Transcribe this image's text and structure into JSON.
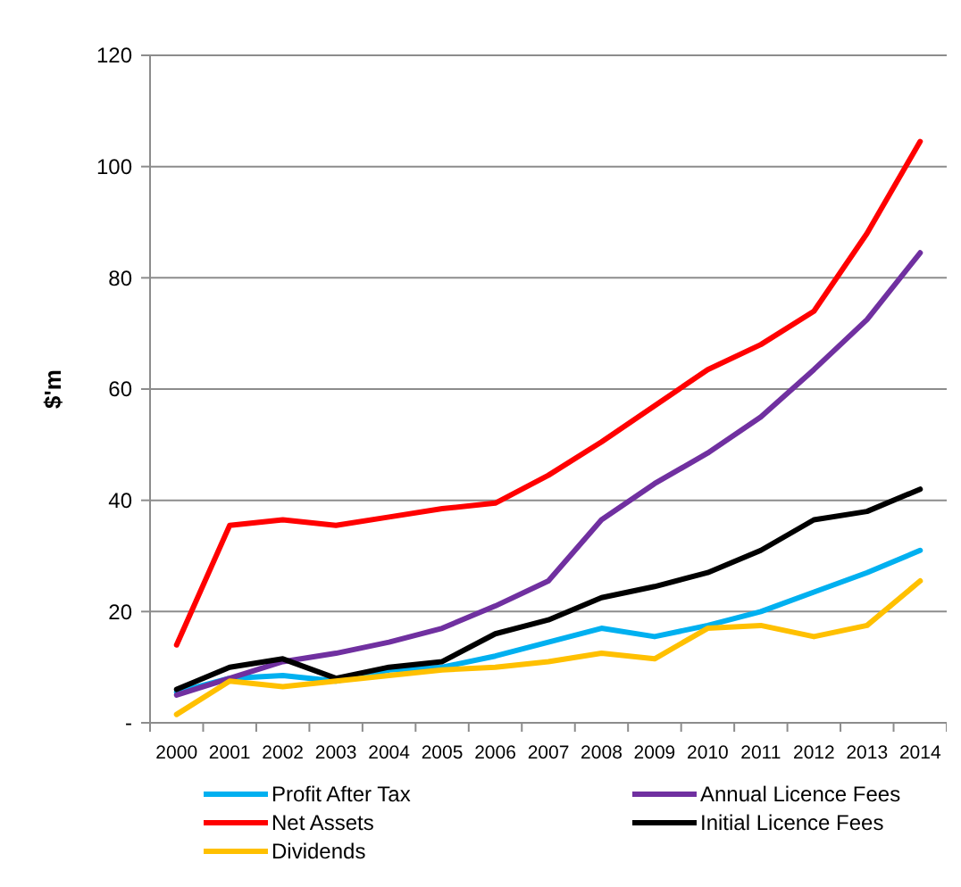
{
  "chart_data": {
    "type": "line",
    "ylabel": "$'m",
    "categories": [
      "2000",
      "2001",
      "2002",
      "2003",
      "2004",
      "2005",
      "2006",
      "2007",
      "2008",
      "2009",
      "2010",
      "2011",
      "2012",
      "2013",
      "2014"
    ],
    "ylim": [
      0,
      120
    ],
    "yticks": [
      {
        "value": 0,
        "label": "-"
      },
      20,
      40,
      60,
      80,
      100,
      120
    ],
    "grid": "y",
    "legend": "bottom",
    "marker": "none",
    "line_style": "solid",
    "series": [
      {
        "name": "Profit After Tax",
        "color": "#00b0f0",
        "values": [
          5.5,
          8,
          8.5,
          7.5,
          9.5,
          10,
          12,
          14.5,
          17,
          15.5,
          17.5,
          20,
          23.5,
          27,
          31
        ]
      },
      {
        "name": "Annual Licence Fees",
        "color": "#7030a0",
        "values": [
          5,
          8,
          11,
          12.5,
          14.5,
          17,
          21,
          25.5,
          36.5,
          43,
          48.5,
          55,
          63.5,
          72.5,
          84.5
        ]
      },
      {
        "name": "Net Assets",
        "color": "#ff0000",
        "values": [
          14,
          35.5,
          36.5,
          35.5,
          37,
          38.5,
          39.5,
          44.5,
          50.5,
          57,
          63.5,
          68,
          74,
          88,
          104.5
        ]
      },
      {
        "name": "Initial Licence Fees",
        "color": "#000000",
        "values": [
          6,
          10,
          11.5,
          8,
          10,
          11,
          16,
          18.5,
          22.5,
          24.5,
          27,
          31,
          36.5,
          38,
          42
        ]
      },
      {
        "name": "Dividends",
        "color": "#ffc000",
        "values": [
          1.5,
          7.5,
          6.5,
          7.5,
          8.5,
          9.5,
          10,
          11,
          12.5,
          11.5,
          17,
          17.5,
          15.5,
          17.5,
          25.5
        ]
      }
    ]
  }
}
